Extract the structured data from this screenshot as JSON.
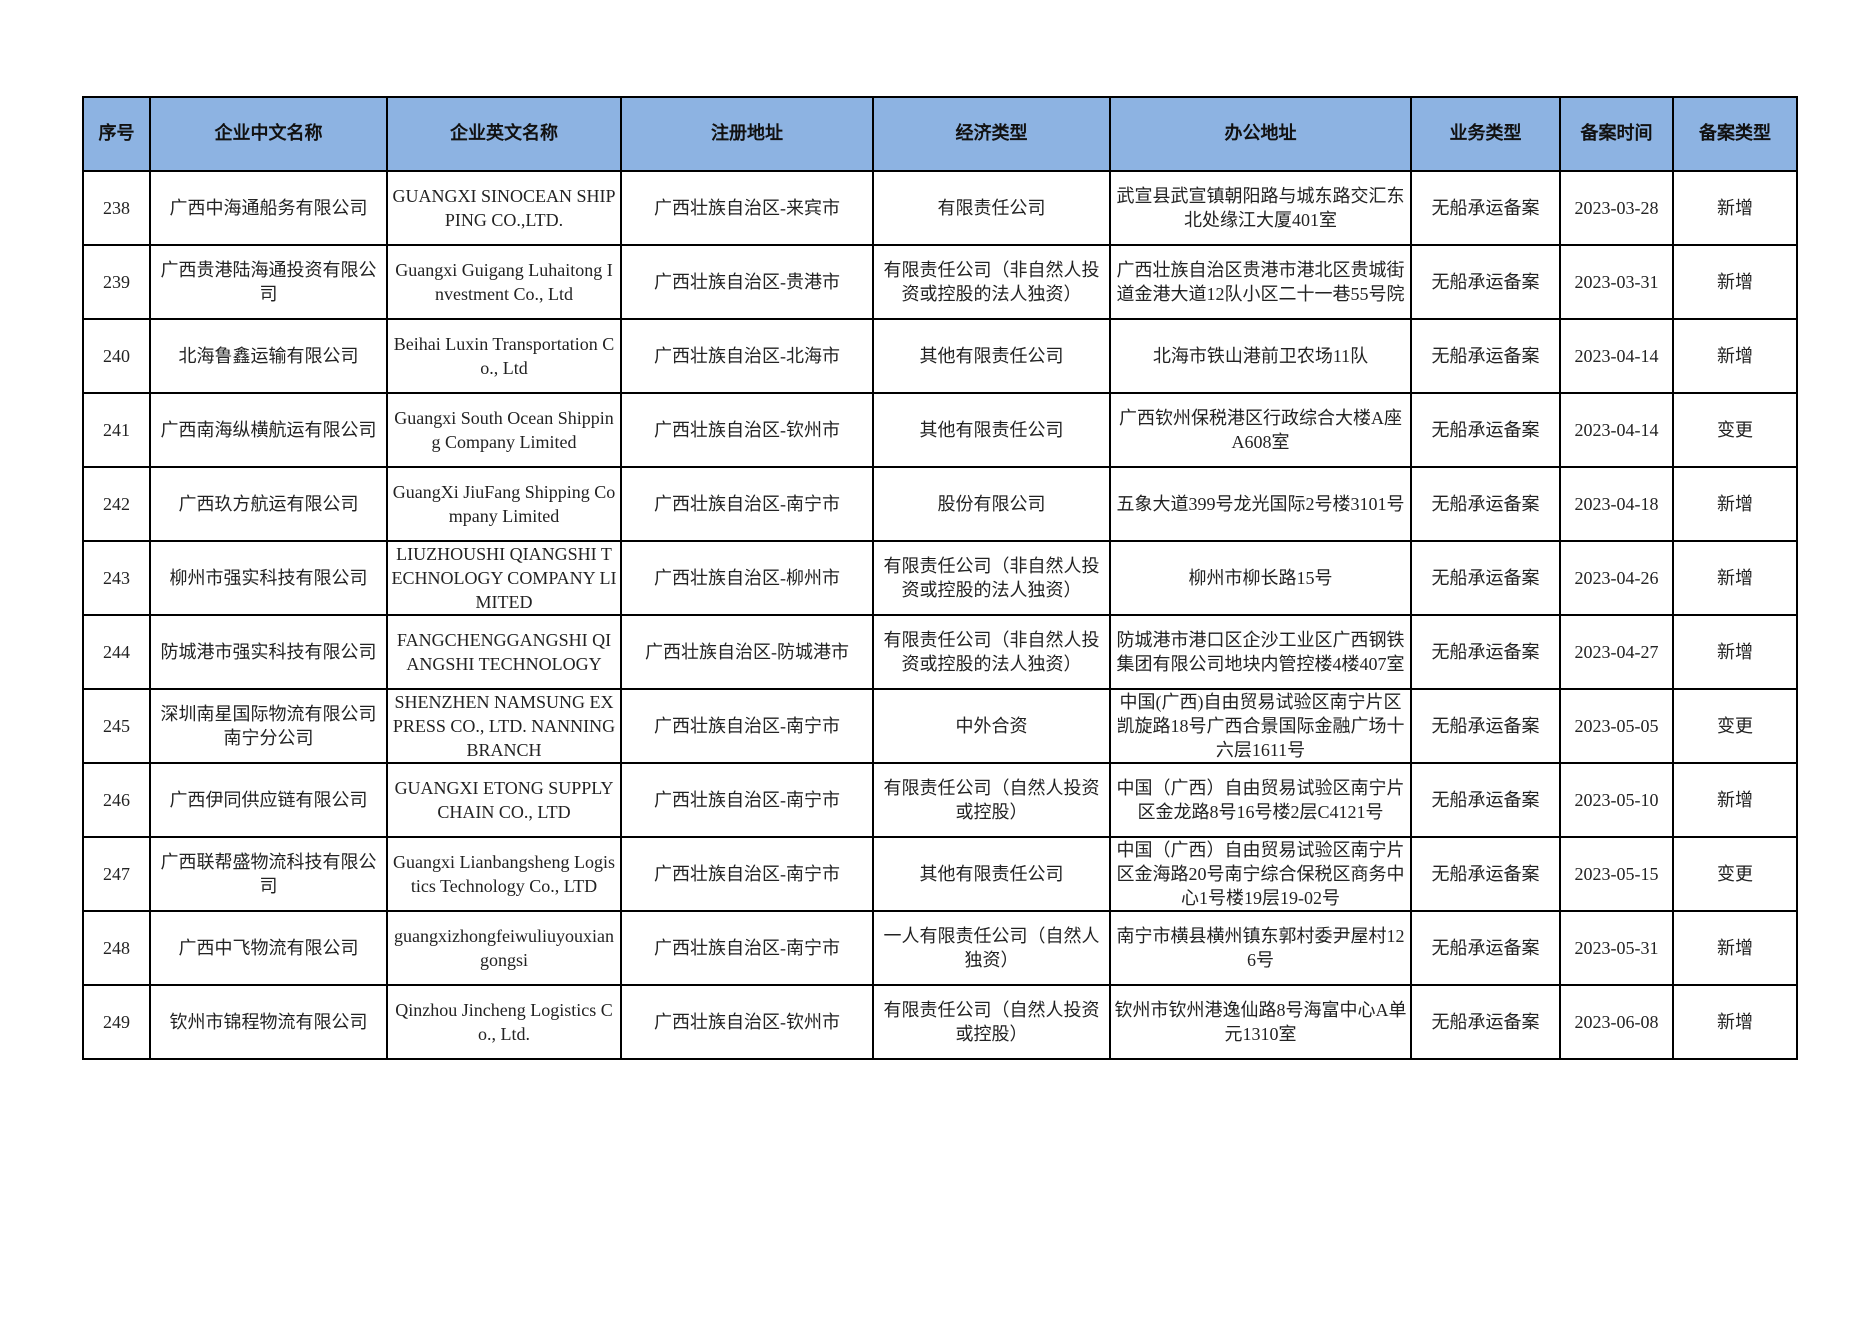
{
  "header_color": "#8db3e2",
  "columns": [
    "序号",
    "企业中文名称",
    "企业英文名称",
    "注册地址",
    "经济类型",
    "办公地址",
    "业务类型",
    "备案时间",
    "备案类型"
  ],
  "rows": [
    [
      "238",
      "广西中海通船务有限公司",
      "GUANGXI SINOCEAN SHIPPING CO.,LTD.",
      "广西壮族自治区-来宾市",
      "有限责任公司",
      "武宣县武宣镇朝阳路与城东路交汇东北处缘江大厦401室",
      "无船承运备案",
      "2023-03-28",
      "新增"
    ],
    [
      "239",
      "广西贵港陆海通投资有限公司",
      "Guangxi Guigang Luhaitong Investment Co., Ltd",
      "广西壮族自治区-贵港市",
      "有限责任公司（非自然人投资或控股的法人独资）",
      "广西壮族自治区贵港市港北区贵城街道金港大道12队小区二十一巷55号院",
      "无船承运备案",
      "2023-03-31",
      "新增"
    ],
    [
      "240",
      "北海鲁鑫运输有限公司",
      "Beihai Luxin Transportation Co., Ltd",
      "广西壮族自治区-北海市",
      "其他有限责任公司",
      "北海市铁山港前卫农场11队",
      "无船承运备案",
      "2023-04-14",
      "新增"
    ],
    [
      "241",
      "广西南海纵横航运有限公司",
      "Guangxi South Ocean Shipping Company Limited",
      "广西壮族自治区-钦州市",
      "其他有限责任公司",
      "广西钦州保税港区行政综合大楼A座A608室",
      "无船承运备案",
      "2023-04-14",
      "变更"
    ],
    [
      "242",
      "广西玖方航运有限公司",
      "GuangXi JiuFang Shipping Company Limited",
      "广西壮族自治区-南宁市",
      "股份有限公司",
      "五象大道399号龙光国际2号楼3101号",
      "无船承运备案",
      "2023-04-18",
      "新增"
    ],
    [
      "243",
      "柳州市强实科技有限公司",
      "LIUZHOUSHI QIANGSHI TECHNOLOGY COMPANY LIMITED",
      "广西壮族自治区-柳州市",
      "有限责任公司（非自然人投资或控股的法人独资）",
      "柳州市柳长路15号",
      "无船承运备案",
      "2023-04-26",
      "新增"
    ],
    [
      "244",
      "防城港市强实科技有限公司",
      "FANGCHENGGANGSHI QIANGSHI TECHNOLOGY",
      "广西壮族自治区-防城港市",
      "有限责任公司（非自然人投资或控股的法人独资）",
      "防城港市港口区企沙工业区广西钢铁集团有限公司地块内管控楼4楼407室",
      "无船承运备案",
      "2023-04-27",
      "新增"
    ],
    [
      "245",
      "深圳南星国际物流有限公司南宁分公司",
      "SHENZHEN NAMSUNG EXPRESS CO., LTD. NANNING BRANCH",
      "广西壮族自治区-南宁市",
      "中外合资",
      "中国(广西)自由贸易试验区南宁片区凯旋路18号广西合景国际金融广场十六层1611号",
      "无船承运备案",
      "2023-05-05",
      "变更"
    ],
    [
      "246",
      "广西伊同供应链有限公司",
      "GUANGXI ETONG SUPPLY CHAIN CO., LTD",
      "广西壮族自治区-南宁市",
      "有限责任公司（自然人投资或控股）",
      "中国（广西）自由贸易试验区南宁片区金龙路8号16号楼2层C4121号",
      "无船承运备案",
      "2023-05-10",
      "新增"
    ],
    [
      "247",
      "广西联帮盛物流科技有限公司",
      "Guangxi Lianbangsheng Logistics Technology Co., LTD",
      "广西壮族自治区-南宁市",
      "其他有限责任公司",
      "中国（广西）自由贸易试验区南宁片区金海路20号南宁综合保税区商务中心1号楼19层19-02号",
      "无船承运备案",
      "2023-05-15",
      "变更"
    ],
    [
      "248",
      "广西中飞物流有限公司",
      "guangxizhongfeiwuliuyouxiangongsi",
      "广西壮族自治区-南宁市",
      "一人有限责任公司（自然人独资）",
      "南宁市横县横州镇东郭村委尹屋村126号",
      "无船承运备案",
      "2023-05-31",
      "新增"
    ],
    [
      "249",
      "钦州市锦程物流有限公司",
      "Qinzhou Jincheng Logistics Co., Ltd.",
      "广西壮族自治区-钦州市",
      "有限责任公司（自然人投资或控股）",
      "钦州市钦州港逸仙路8号海富中心A单元1310室",
      "无船承运备案",
      "2023-06-08",
      "新增"
    ]
  ]
}
